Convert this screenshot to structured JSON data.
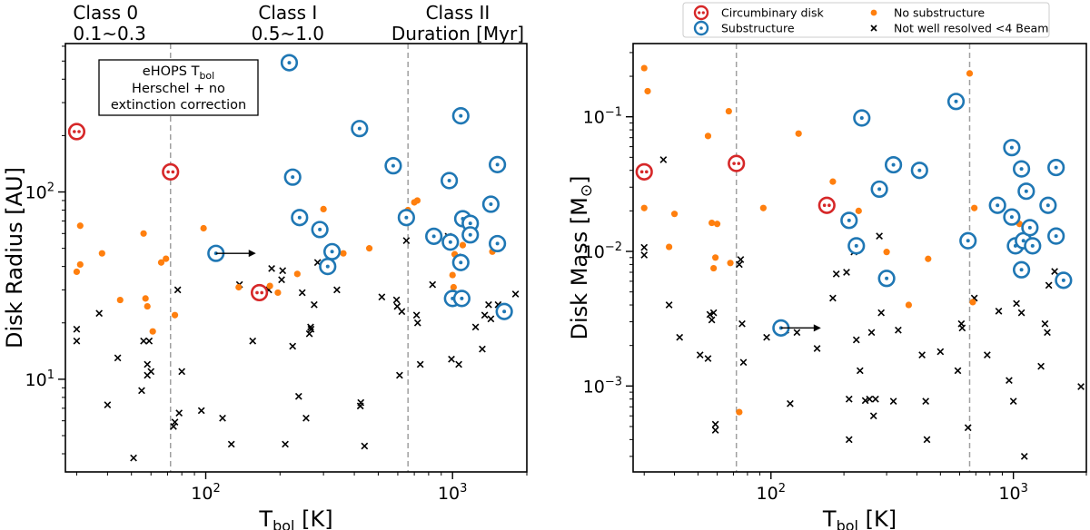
{
  "chart_data": [
    {
      "type": "scatter",
      "xlabel": "T",
      "xlabel_sub": "bol",
      "xlabel_unit": " [K]",
      "ylabel": "Disk Radius [AU]",
      "xscale": "log",
      "yscale": "log",
      "xlim": [
        27,
        2000
      ],
      "ylim": [
        3.2,
        620
      ],
      "x_ticks": [
        {
          "value": 100,
          "base": "10",
          "exp": "2"
        },
        {
          "value": 1000,
          "base": "10",
          "exp": "3"
        }
      ],
      "y_ticks": [
        {
          "value": 10,
          "base": "10",
          "exp": "1"
        },
        {
          "value": 100,
          "base": "10",
          "exp": "2"
        }
      ],
      "vlines": [
        72,
        660
      ],
      "class_labels": [
        {
          "x": 29,
          "lines": [
            "Class 0",
            "0.1~0.3"
          ]
        },
        {
          "x": 215,
          "lines": [
            "Class I",
            "0.5~1.0"
          ]
        },
        {
          "x": 1050,
          "lines": [
            "Class II",
            "Duration [Myr]"
          ]
        }
      ],
      "annotation": {
        "lines": [
          "eHOPS T",
          "Herschel + no",
          "extinction correction"
        ],
        "sub": "bol"
      },
      "circumbinary": [
        [
          30,
          210
        ],
        [
          72,
          128
        ],
        [
          165,
          29
        ]
      ],
      "substructure": [
        [
          218,
          490
        ],
        [
          225,
          120
        ],
        [
          240,
          73
        ],
        [
          110,
          47
        ],
        [
          290,
          63
        ],
        [
          312,
          40
        ],
        [
          325,
          48
        ],
        [
          420,
          218
        ],
        [
          575,
          138
        ],
        [
          650,
          73
        ],
        [
          840,
          58
        ],
        [
          970,
          115
        ],
        [
          980,
          54
        ],
        [
          1000,
          27
        ],
        [
          1080,
          255
        ],
        [
          1080,
          42
        ],
        [
          1090,
          27
        ],
        [
          1100,
          72
        ],
        [
          1180,
          68
        ],
        [
          1180,
          59
        ],
        [
          1430,
          86
        ],
        [
          1520,
          140
        ],
        [
          1520,
          53
        ],
        [
          1620,
          23
        ]
      ],
      "no_substructure": [
        [
          30,
          37.5
        ],
        [
          31,
          41
        ],
        [
          31,
          66
        ],
        [
          38,
          47
        ],
        [
          45,
          26.5
        ],
        [
          56,
          60
        ],
        [
          57,
          27
        ],
        [
          58,
          24.5
        ],
        [
          61,
          18
        ],
        [
          66,
          42
        ],
        [
          69,
          44
        ],
        [
          75,
          22
        ],
        [
          98,
          64
        ],
        [
          136,
          31
        ],
        [
          182,
          31.5
        ],
        [
          196,
          29
        ],
        [
          235,
          36.5
        ],
        [
          300,
          81
        ],
        [
          361,
          47
        ],
        [
          460,
          50
        ],
        [
          660,
          80
        ],
        [
          700,
          88
        ],
        [
          720,
          90
        ],
        [
          1000,
          29
        ],
        [
          1000,
          36
        ],
        [
          1010,
          31
        ],
        [
          1020,
          46.5
        ],
        [
          1100,
          52
        ],
        [
          1450,
          48
        ]
      ],
      "not_resolved": [
        [
          30,
          18.5
        ],
        [
          30,
          16
        ],
        [
          37,
          22.5
        ],
        [
          40,
          7.3
        ],
        [
          44,
          13
        ],
        [
          51,
          3.8
        ],
        [
          55,
          8.7
        ],
        [
          56,
          16
        ],
        [
          59,
          16
        ],
        [
          58,
          12
        ],
        [
          60,
          11
        ],
        [
          58,
          10.5
        ],
        [
          74,
          5.6
        ],
        [
          75,
          5.9
        ],
        [
          78,
          6.6
        ],
        [
          80,
          11
        ],
        [
          77,
          30
        ],
        [
          96,
          6.8
        ],
        [
          117,
          6.2
        ],
        [
          127,
          4.5
        ],
        [
          137,
          32
        ],
        [
          155,
          16
        ],
        [
          180,
          30
        ],
        [
          185,
          39
        ],
        [
          203,
          34
        ],
        [
          205,
          38
        ],
        [
          210,
          4.5
        ],
        [
          225,
          15
        ],
        [
          238,
          8.1
        ],
        [
          246,
          29
        ],
        [
          255,
          6.2
        ],
        [
          263,
          17.5
        ],
        [
          266,
          19
        ],
        [
          267,
          18.5
        ],
        [
          275,
          25
        ],
        [
          284,
          42
        ],
        [
          340,
          30
        ],
        [
          423,
          7.2
        ],
        [
          425,
          7.5
        ],
        [
          440,
          4.4
        ],
        [
          517,
          27.5
        ],
        [
          593,
          26.5
        ],
        [
          597,
          24.5
        ],
        [
          623,
          23
        ],
        [
          610,
          10.5
        ],
        [
          650,
          55
        ],
        [
          715,
          22
        ],
        [
          722,
          20
        ],
        [
          740,
          12
        ],
        [
          830,
          32
        ],
        [
          960,
          58
        ],
        [
          990,
          12.8
        ],
        [
          1050,
          45
        ],
        [
          1060,
          12
        ],
        [
          1240,
          19
        ],
        [
          1320,
          14.5
        ],
        [
          1350,
          22
        ],
        [
          1400,
          25
        ],
        [
          1430,
          21
        ],
        [
          1530,
          25
        ],
        [
          1800,
          28.5
        ]
      ]
    },
    {
      "type": "scatter",
      "xlabel": "T",
      "xlabel_sub": "bol",
      "xlabel_unit": " [K]",
      "ylabel": "Disk Mass [M",
      "ylabel_sym": "⊙",
      "ylabel_end": "]",
      "xscale": "log",
      "yscale": "log",
      "xlim": [
        27,
        2000
      ],
      "ylim": [
        0.00023,
        0.35
      ],
      "x_ticks": [
        {
          "value": 100,
          "base": "10",
          "exp": "2"
        },
        {
          "value": 1000,
          "base": "10",
          "exp": "3"
        }
      ],
      "y_ticks": [
        {
          "value": 0.001,
          "base": "10",
          "exp": "−3"
        },
        {
          "value": 0.01,
          "base": "10",
          "exp": "−2"
        },
        {
          "value": 0.1,
          "base": "10",
          "exp": "−1"
        }
      ],
      "vlines": [
        72,
        660
      ],
      "legend": [
        {
          "marker": "circumbinary",
          "label": "Circumbinary disk"
        },
        {
          "marker": "substructure",
          "label": "Substructure"
        },
        {
          "marker": "no_substructure",
          "label": "No substructure"
        },
        {
          "marker": "not_resolved",
          "label": "Not well resolved <4 Beam"
        }
      ],
      "circumbinary": [
        [
          30,
          0.039
        ],
        [
          72,
          0.045
        ],
        [
          170,
          0.022
        ]
      ],
      "substructure": [
        [
          110,
          0.0027
        ],
        [
          210,
          0.017
        ],
        [
          225,
          0.011
        ],
        [
          237,
          0.098
        ],
        [
          280,
          0.029
        ],
        [
          300,
          0.0063
        ],
        [
          320,
          0.044
        ],
        [
          410,
          0.04
        ],
        [
          580,
          0.13
        ],
        [
          650,
          0.012
        ],
        [
          860,
          0.022
        ],
        [
          985,
          0.059
        ],
        [
          985,
          0.018
        ],
        [
          1020,
          0.011
        ],
        [
          1080,
          0.041
        ],
        [
          1080,
          0.0073
        ],
        [
          1100,
          0.012
        ],
        [
          1130,
          0.028
        ],
        [
          1170,
          0.015
        ],
        [
          1200,
          0.011
        ],
        [
          1390,
          0.022
        ],
        [
          1500,
          0.042
        ],
        [
          1500,
          0.013
        ],
        [
          1610,
          0.0061
        ]
      ],
      "no_substructure": [
        [
          30,
          0.23
        ],
        [
          31,
          0.155
        ],
        [
          30,
          0.021
        ],
        [
          40,
          0.019
        ],
        [
          38,
          0.0108
        ],
        [
          55,
          0.072
        ],
        [
          57,
          0.0163
        ],
        [
          58,
          0.0075
        ],
        [
          59,
          0.009
        ],
        [
          60,
          0.016
        ],
        [
          67,
          0.11
        ],
        [
          68,
          0.0082
        ],
        [
          74,
          0.00064
        ],
        [
          93,
          0.021
        ],
        [
          130,
          0.075
        ],
        [
          180,
          0.033
        ],
        [
          230,
          0.02
        ],
        [
          300,
          0.0099
        ],
        [
          370,
          0.004
        ],
        [
          445,
          0.0088
        ],
        [
          660,
          0.21
        ],
        [
          680,
          0.0042
        ],
        [
          690,
          0.021
        ],
        [
          1060,
          0.016
        ]
      ],
      "not_resolved": [
        [
          30,
          0.0107
        ],
        [
          30,
          0.0094
        ],
        [
          36,
          0.048
        ],
        [
          38,
          0.004
        ],
        [
          42,
          0.0023
        ],
        [
          51,
          0.0017
        ],
        [
          55,
          0.0016
        ],
        [
          56,
          0.0034
        ],
        [
          57,
          0.0031
        ],
        [
          58,
          0.0035
        ],
        [
          59,
          0.00047
        ],
        [
          59,
          0.00052
        ],
        [
          74,
          0.008
        ],
        [
          75,
          0.0087
        ],
        [
          76,
          0.0029
        ],
        [
          77,
          0.0015
        ],
        [
          96,
          0.0023
        ],
        [
          115,
          0.0026
        ],
        [
          120,
          0.00074
        ],
        [
          128,
          0.0025
        ],
        [
          155,
          0.0019
        ],
        [
          180,
          0.0045
        ],
        [
          186,
          0.0068
        ],
        [
          205,
          0.007
        ],
        [
          210,
          0.0008
        ],
        [
          210,
          0.0004
        ],
        [
          220,
          0.0099
        ],
        [
          225,
          0.0022
        ],
        [
          233,
          0.0013
        ],
        [
          245,
          0.00078
        ],
        [
          255,
          0.0008
        ],
        [
          260,
          0.0025
        ],
        [
          265,
          0.0006
        ],
        [
          270,
          0.0008
        ],
        [
          280,
          0.013
        ],
        [
          285,
          0.0035
        ],
        [
          320,
          0.00077
        ],
        [
          335,
          0.0026
        ],
        [
          420,
          0.0017
        ],
        [
          435,
          0.00077
        ],
        [
          440,
          0.0004
        ],
        [
          500,
          0.0018
        ],
        [
          590,
          0.0013
        ],
        [
          610,
          0.0029
        ],
        [
          615,
          0.0027
        ],
        [
          650,
          0.00049
        ],
        [
          690,
          0.0045
        ],
        [
          780,
          0.0017
        ],
        [
          870,
          0.0036
        ],
        [
          960,
          0.0011
        ],
        [
          1000,
          0.00077
        ],
        [
          1030,
          0.0041
        ],
        [
          1080,
          0.0035
        ],
        [
          1110,
          0.0003
        ],
        [
          1300,
          0.0014
        ],
        [
          1350,
          0.0029
        ],
        [
          1380,
          0.0025
        ],
        [
          1400,
          0.0056
        ],
        [
          1480,
          0.0071
        ],
        [
          1900,
          0.00099
        ]
      ]
    }
  ],
  "colors": {
    "circumbinary": "#d62728",
    "substructure": "#1f77b4",
    "no_substructure": "#ff7f0e",
    "not_resolved": "#000000",
    "vline": "#a0a0a0"
  }
}
